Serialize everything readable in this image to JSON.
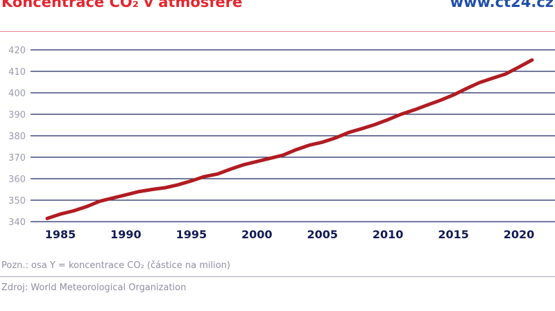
{
  "header": {
    "title": "Koncentrace CO₂ v atmosféře",
    "brand": "www.ct24.cz"
  },
  "footer": {
    "note": "Pozn.: osa Y = koncentrace CO₂ (částice na milion)",
    "source": "Zdroj: World Meteorological Organization"
  },
  "chart_data": {
    "type": "line",
    "title": "Koncentrace CO₂ v atmosféře",
    "xlabel": "",
    "ylabel": "",
    "ylim": [
      340,
      420
    ],
    "xlim": [
      1983,
      2023
    ],
    "yticks": [
      340,
      350,
      360,
      370,
      380,
      390,
      400,
      410,
      420
    ],
    "xticks": [
      1985,
      1990,
      1995,
      2000,
      2005,
      2010,
      2015,
      2020
    ],
    "grid": true,
    "line_color": "#b01c22",
    "series": [
      {
        "x": [
          1984,
          1985,
          1986,
          1987,
          1988,
          1989,
          1990,
          1991,
          1992,
          1993,
          1994,
          1995,
          1996,
          1997,
          1998,
          1999,
          2000,
          2001,
          2002,
          2003,
          2004,
          2005,
          2006,
          2007,
          2008,
          2009,
          2010,
          2011,
          2012,
          2013,
          2014,
          2015,
          2016,
          2017,
          2018,
          2019,
          2020,
          2021
        ],
        "values": [
          341.5,
          343.5,
          345,
          347,
          349.5,
          351,
          352.5,
          354,
          355,
          355.8,
          357.2,
          359,
          361,
          362.2,
          364.5,
          366.5,
          368,
          369.5,
          371,
          373.5,
          375.6,
          377,
          379,
          381.5,
          383.3,
          385.2,
          387.5,
          390,
          392,
          394.3,
          396.5,
          399,
          402,
          404.8,
          406.8,
          408.8,
          412,
          415.3
        ]
      }
    ]
  }
}
